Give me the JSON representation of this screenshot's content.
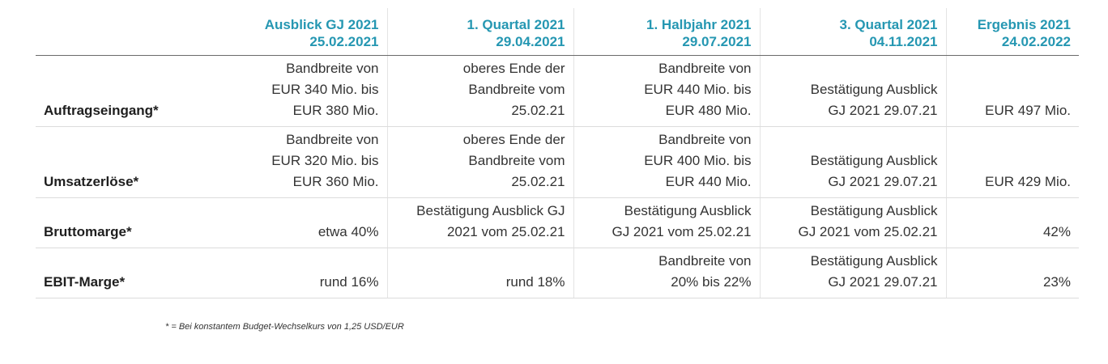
{
  "columns": [
    {
      "title": "Ausblick GJ 2021",
      "date": "25.02.2021"
    },
    {
      "title": "1. Quartal 2021",
      "date": "29.04.2021"
    },
    {
      "title": "1. Halbjahr 2021",
      "date": "29.07.2021"
    },
    {
      "title": "3. Quartal 2021",
      "date": "04.11.2021"
    },
    {
      "title": "Ergebnis 2021",
      "date": "24.02.2022"
    }
  ],
  "rows": [
    {
      "label": "Auftragseingang*",
      "cells": [
        [
          "Bandbreite von",
          "EUR 340 Mio. bis",
          "EUR 380 Mio."
        ],
        [
          "oberes Ende der",
          "Bandbreite vom",
          "25.02.21"
        ],
        [
          "Bandbreite von",
          "EUR 440 Mio. bis",
          "EUR 480 Mio."
        ],
        [
          "Bestätigung Ausblick",
          "GJ 2021 29.07.21"
        ],
        [
          "EUR 497 Mio."
        ]
      ]
    },
    {
      "label": "Umsatzerlöse*",
      "cells": [
        [
          "Bandbreite von",
          "EUR 320 Mio. bis",
          "EUR 360 Mio."
        ],
        [
          "oberes Ende der",
          "Bandbreite vom",
          "25.02.21"
        ],
        [
          "Bandbreite von",
          "EUR 400 Mio. bis",
          "EUR 440 Mio."
        ],
        [
          "Bestätigung Ausblick",
          "GJ 2021 29.07.21"
        ],
        [
          "EUR 429 Mio."
        ]
      ]
    },
    {
      "label": "Bruttomarge*",
      "cells": [
        [
          "etwa 40%"
        ],
        [
          "Bestätigung Ausblick GJ",
          "2021 vom 25.02.21"
        ],
        [
          "Bestätigung Ausblick",
          "GJ 2021 vom 25.02.21"
        ],
        [
          "Bestätigung Ausblick",
          "GJ 2021 vom 25.02.21"
        ],
        [
          "42%"
        ]
      ]
    },
    {
      "label": "EBIT-Marge*",
      "cells": [
        [
          "rund 16%"
        ],
        [
          "rund 18%"
        ],
        [
          "Bandbreite von",
          "20% bis 22%"
        ],
        [
          "Bestätigung Ausblick",
          "GJ 2021 29.07.21"
        ],
        [
          "23%"
        ]
      ]
    }
  ],
  "footnote": "* = Bei konstantem Budget-Wechselkurs von 1,25 USD/EUR",
  "colors": {
    "header_accent": "#2597b2",
    "text": "#333333",
    "rule": "#6a6a6a"
  }
}
